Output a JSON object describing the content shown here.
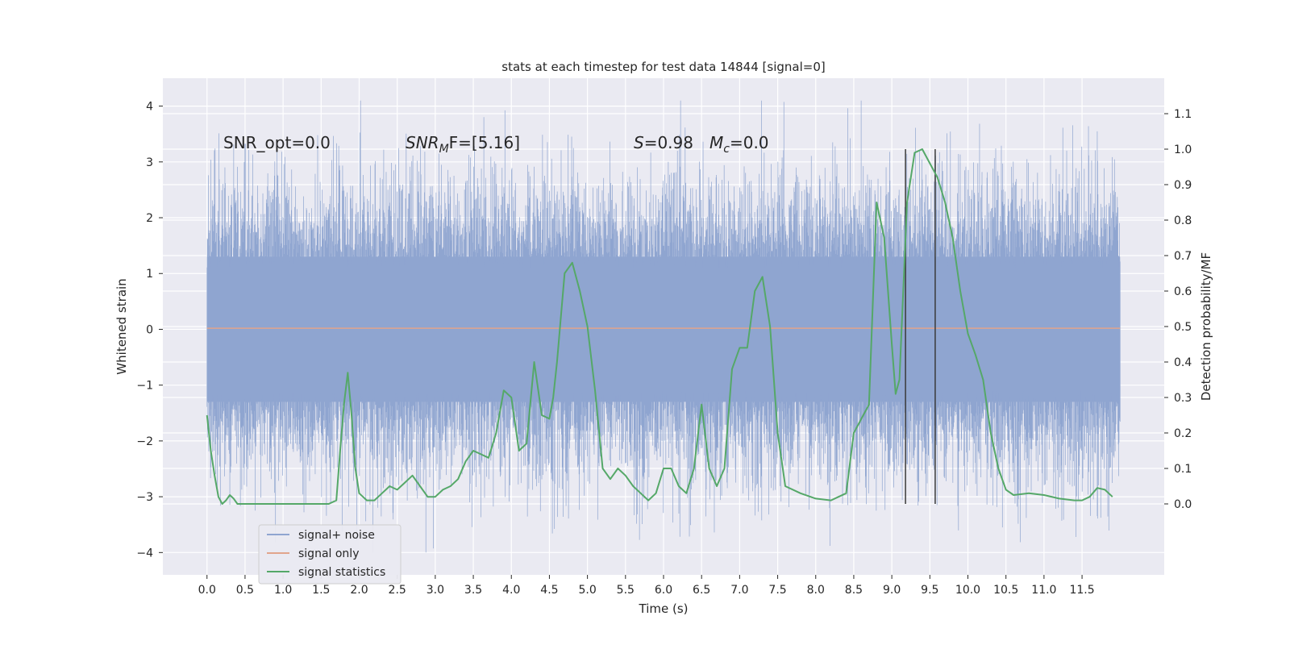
{
  "chart_data": {
    "type": "line",
    "title": "stats at each timestep for test data 14844 [signal=0]",
    "xlabel": "Time (s)",
    "ylabel_left": "Whitened strain",
    "ylabel_right": "Detection probability/MF",
    "xlim": [
      -0.58,
      12.58
    ],
    "ylim_left": [
      -4.4,
      4.5
    ],
    "ylim_right": [
      -0.2,
      1.2
    ],
    "x_ticks": [
      "0.0",
      "0.5",
      "1.0",
      "1.5",
      "2.0",
      "2.5",
      "3.0",
      "3.5",
      "4.0",
      "4.5",
      "5.0",
      "5.5",
      "6.0",
      "6.5",
      "7.0",
      "7.5",
      "8.0",
      "8.5",
      "9.0",
      "9.5",
      "10.0",
      "10.5",
      "11.0",
      "11.5"
    ],
    "y_ticks_left": [
      "4",
      "3",
      "2",
      "1",
      "0",
      "−1",
      "−2",
      "−3",
      "−4"
    ],
    "y_ticks_right": [
      "0.0",
      "0.1",
      "0.2",
      "0.3",
      "0.4",
      "0.5",
      "0.6",
      "0.7",
      "0.8",
      "0.9",
      "1.0",
      "1.1"
    ],
    "grid": true,
    "legend_position": "lower-left",
    "colors": {
      "background": "#eaeaf2",
      "grid": "#ffffff",
      "noise": "#8fa5d0",
      "signal": "#e1a58c",
      "stat": "#55a868",
      "vline": "#3a3a3a"
    },
    "annotations": {
      "snr_opt": "SNR_opt=0.0",
      "snr_mf_symbol": "SNR",
      "snr_mf_sub": "M",
      "snr_mf_rest": "F=[5.16]",
      "s_symbol": "S",
      "s_rest": "=0.98",
      "mc_symbol": "M",
      "mc_sub": "c",
      "mc_rest": "=0.0"
    },
    "series": [
      {
        "name": "signal+ noise",
        "role": "noise",
        "x_range": [
          0,
          12
        ],
        "envelope_dense": [
          -1.3,
          1.3
        ],
        "peak_min": -4.0,
        "peak_max": 4.1
      },
      {
        "name": "signal only",
        "role": "signal",
        "x": [
          0,
          12
        ],
        "y": [
          0.02,
          0.02
        ]
      },
      {
        "name": "signal statistics",
        "role": "stat",
        "x": [
          0.0,
          0.05,
          0.1,
          0.15,
          0.2,
          0.25,
          0.3,
          0.35,
          0.4,
          0.5,
          0.6,
          0.7,
          0.8,
          1.0,
          1.2,
          1.4,
          1.6,
          1.7,
          1.75,
          1.8,
          1.85,
          1.9,
          1.95,
          2.0,
          2.05,
          2.1,
          2.2,
          2.3,
          2.4,
          2.5,
          2.6,
          2.7,
          2.8,
          2.9,
          3.0,
          3.1,
          3.2,
          3.3,
          3.4,
          3.5,
          3.6,
          3.7,
          3.8,
          3.9,
          4.0,
          4.1,
          4.2,
          4.3,
          4.4,
          4.5,
          4.55,
          4.6,
          4.7,
          4.8,
          4.9,
          5.0,
          5.1,
          5.2,
          5.3,
          5.4,
          5.5,
          5.6,
          5.7,
          5.8,
          5.9,
          6.0,
          6.1,
          6.2,
          6.3,
          6.4,
          6.5,
          6.6,
          6.7,
          6.8,
          6.9,
          7.0,
          7.1,
          7.2,
          7.3,
          7.4,
          7.5,
          7.6,
          7.8,
          8.0,
          8.2,
          8.3,
          8.4,
          8.5,
          8.6,
          8.7,
          8.8,
          8.85,
          8.9,
          9.0,
          9.05,
          9.1,
          9.2,
          9.3,
          9.4,
          9.5,
          9.6,
          9.7,
          9.8,
          9.9,
          10.0,
          10.1,
          10.2,
          10.3,
          10.4,
          10.5,
          10.6,
          10.8,
          11.0,
          11.2,
          11.4,
          11.5,
          11.6,
          11.7,
          11.8,
          11.9
        ],
        "y": [
          0.25,
          0.15,
          0.08,
          0.02,
          0.0,
          0.01,
          0.025,
          0.015,
          0.0,
          0.0,
          0.0,
          0.0,
          0.0,
          0.0,
          0.0,
          0.0,
          0.0,
          0.01,
          0.15,
          0.28,
          0.37,
          0.25,
          0.1,
          0.03,
          0.02,
          0.01,
          0.01,
          0.03,
          0.05,
          0.04,
          0.06,
          0.08,
          0.05,
          0.02,
          0.02,
          0.04,
          0.05,
          0.07,
          0.12,
          0.15,
          0.14,
          0.13,
          0.2,
          0.32,
          0.3,
          0.15,
          0.17,
          0.4,
          0.25,
          0.24,
          0.3,
          0.4,
          0.65,
          0.68,
          0.6,
          0.5,
          0.32,
          0.1,
          0.07,
          0.1,
          0.08,
          0.05,
          0.03,
          0.01,
          0.03,
          0.1,
          0.1,
          0.05,
          0.03,
          0.1,
          0.28,
          0.1,
          0.05,
          0.1,
          0.38,
          0.44,
          0.44,
          0.6,
          0.64,
          0.5,
          0.2,
          0.05,
          0.03,
          0.015,
          0.01,
          0.02,
          0.03,
          0.2,
          0.24,
          0.28,
          0.85,
          0.8,
          0.75,
          0.45,
          0.31,
          0.35,
          0.85,
          0.99,
          1.0,
          0.96,
          0.92,
          0.85,
          0.75,
          0.6,
          0.48,
          0.42,
          0.35,
          0.2,
          0.1,
          0.04,
          0.025,
          0.03,
          0.025,
          0.015,
          0.01,
          0.01,
          0.02,
          0.045,
          0.04,
          0.02
        ]
      }
    ],
    "vlines": [
      9.18,
      9.57
    ],
    "vline_range_right": [
      0.0,
      1.0
    ]
  }
}
